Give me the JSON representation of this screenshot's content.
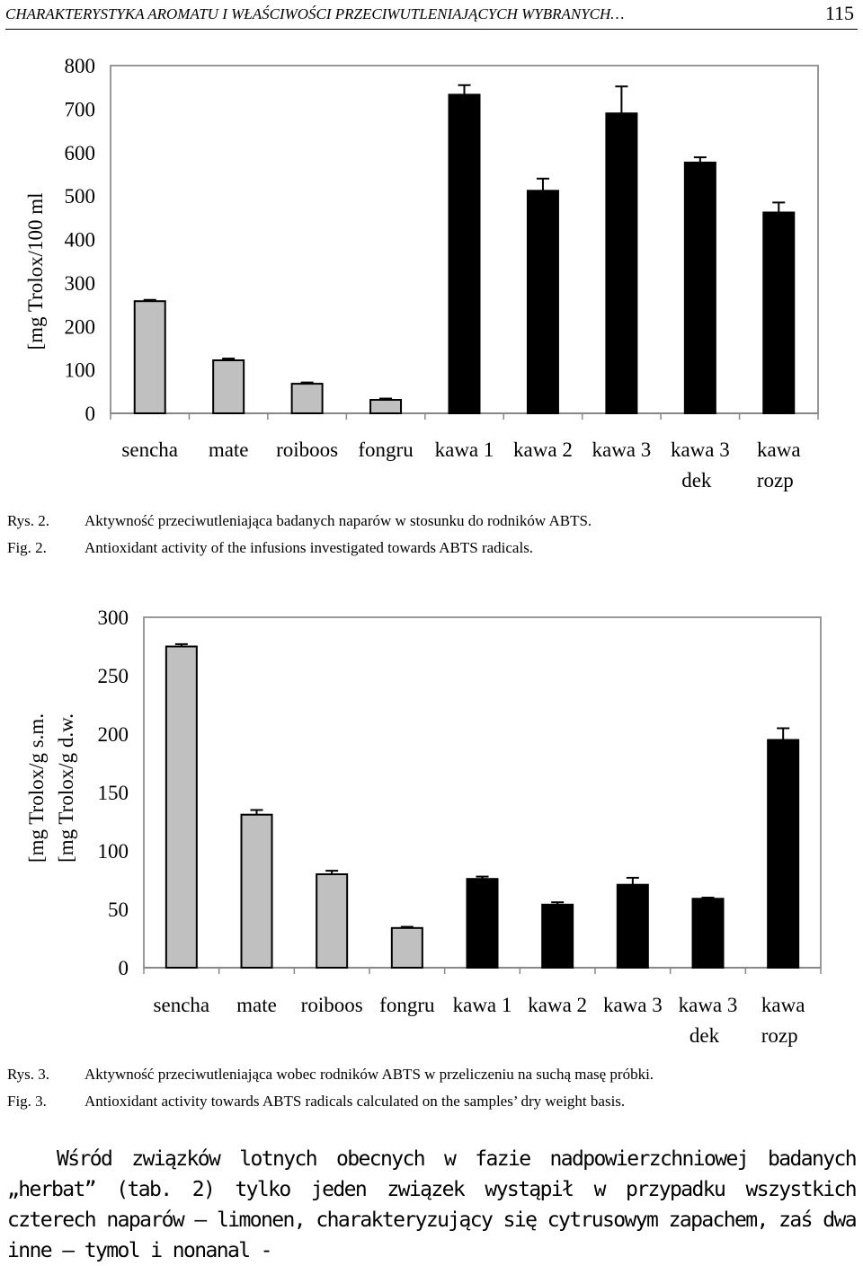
{
  "header": {
    "title": "CHARAKTERYSTYKA AROMATU I WŁAŚCIWOŚCI PRZECIWUTLENIAJĄCYCH WYBRANYCH…",
    "page": "115"
  },
  "figures": [
    {
      "label_pl": "Rys. 2.",
      "label_en": "Fig. 2.",
      "caption_pl": "Aktywność przeciwutleniająca badanych naparów w stosunku do rodników ABTS.",
      "caption_en": "Antioxidant activity of the infusions investigated towards ABTS radicals."
    },
    {
      "label_pl": "Rys. 3.",
      "label_en": "Fig. 3.",
      "caption_pl": "Aktywność przeciwutleniająca wobec rodników ABTS w przeliczeniu na suchą masę próbki.",
      "caption_en": "Antioxidant activity towards ABTS radicals calculated on the samples’ dry weight basis."
    }
  ],
  "body_text": "Wśród związków lotnych obecnych w fazie nadpowierzchniowej badanych „herbat” (tab. 2) tylko jeden związek wystąpił w przypadku wszystkich czterech naparów – limonen, charakteryzujący się cytrusowym zapachem, zaś dwa inne – tymol i nonanal -",
  "chart_data": [
    {
      "type": "bar",
      "categories": [
        [
          "sencha"
        ],
        [
          "mate"
        ],
        [
          "roiboos"
        ],
        [
          "fongru"
        ],
        [
          "kawa 1"
        ],
        [
          "kawa 2"
        ],
        [
          "kawa 3"
        ],
        [
          "kawa 3",
          "dek"
        ],
        [
          "kawa",
          "rozp"
        ]
      ],
      "values": [
        258,
        122,
        68,
        31,
        733,
        512,
        690,
        577,
        462
      ],
      "errors": [
        3,
        4,
        3,
        3,
        22,
        28,
        62,
        12,
        23
      ],
      "colors": [
        "#c0c0c0",
        "#c0c0c0",
        "#c0c0c0",
        "#c0c0c0",
        "#000000",
        "#000000",
        "#000000",
        "#000000",
        "#000000"
      ],
      "ylabel": [
        "[mg Trolox/100 ml"
      ],
      "ylim": [
        0,
        800
      ],
      "yticks": [
        0,
        100,
        200,
        300,
        400,
        500,
        600,
        700,
        800
      ],
      "grid": false,
      "legend": "none"
    },
    {
      "type": "bar",
      "categories": [
        [
          "sencha"
        ],
        [
          "mate"
        ],
        [
          "roiboos"
        ],
        [
          "fongru"
        ],
        [
          "kawa 1"
        ],
        [
          "kawa 2"
        ],
        [
          "kawa 3"
        ],
        [
          "kawa 3",
          "dek"
        ],
        [
          "kawa",
          "rozp"
        ]
      ],
      "values": [
        275,
        131,
        80,
        34,
        76,
        54,
        71,
        59,
        195
      ],
      "errors": [
        2,
        4,
        3,
        1,
        2,
        2,
        6,
        1,
        10
      ],
      "colors": [
        "#c0c0c0",
        "#c0c0c0",
        "#c0c0c0",
        "#c0c0c0",
        "#000000",
        "#000000",
        "#000000",
        "#000000",
        "#000000"
      ],
      "ylabel": [
        "[mg Trolox/g s.m.",
        "[mg Trolox/g d.w."
      ],
      "ylim": [
        0,
        300
      ],
      "yticks": [
        0,
        50,
        100,
        150,
        200,
        250,
        300
      ],
      "grid": false,
      "legend": "none"
    }
  ]
}
